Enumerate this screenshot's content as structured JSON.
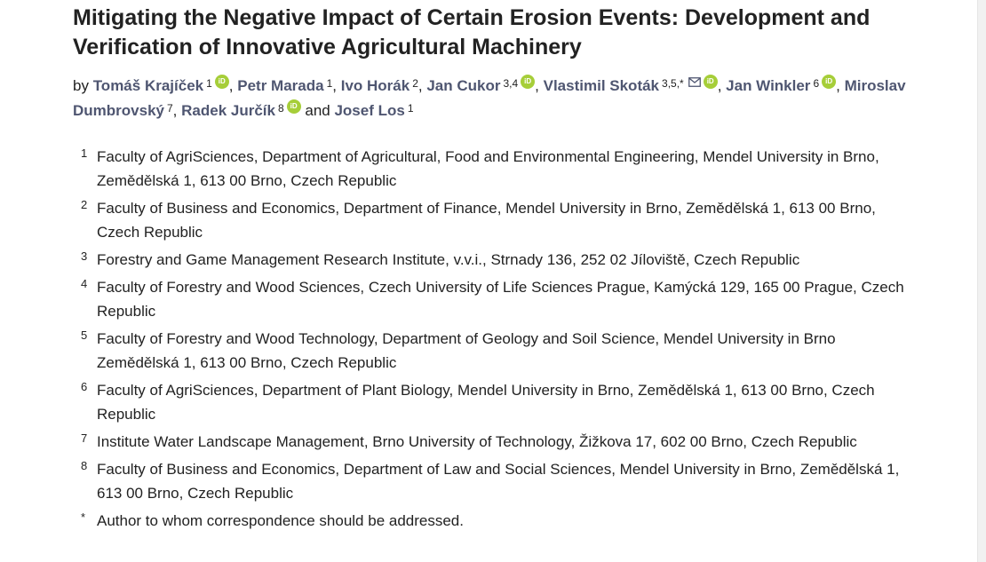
{
  "title": "Mitigating the Negative Impact of Certain Erosion Events: Development and Verification of Innovative Agricultural Machinery",
  "byline_prefix": "by",
  "conjunction": "and",
  "authors": [
    {
      "name": "Tomáš Krajíček",
      "affil": "1",
      "orcid": true
    },
    {
      "name": "Petr Marada",
      "affil": "1",
      "orcid": false
    },
    {
      "name": "Ivo Horák",
      "affil": "2",
      "orcid": false
    },
    {
      "name": "Jan Cukor",
      "affil": "3,4",
      "orcid": true
    },
    {
      "name": "Vlastimil Skoták",
      "affil": "3,5,*",
      "orcid": true,
      "email": true
    },
    {
      "name": "Jan Winkler",
      "affil": "6",
      "orcid": true
    },
    {
      "name": "Miroslav Dumbrovský",
      "affil": "7",
      "orcid": false
    },
    {
      "name": "Radek Jurčík",
      "affil": "8",
      "orcid": true
    },
    {
      "name": "Josef Los",
      "affil": "1",
      "orcid": false
    }
  ],
  "orcid_label": "iD",
  "icons": {
    "orcid": "orcid-icon",
    "email": "envelope-icon"
  },
  "colors": {
    "author_link": "#4f5671",
    "orcid": "#a6ce39",
    "text": "#222222"
  },
  "affiliations": [
    {
      "num": "1",
      "text": "Faculty of AgriSciences, Department of Agricultural, Food and Environmental Engineering, Mendel University in Brno, Zemědělská 1, 613 00 Brno, Czech Republic"
    },
    {
      "num": "2",
      "text": "Faculty of Business and Economics, Department of Finance, Mendel University in Brno, Zemědělská 1, 613 00 Brno, Czech Republic"
    },
    {
      "num": "3",
      "text": "Forestry and Game Management Research Institute, v.v.i., Strnady 136, 252 02 Jíloviště, Czech Republic"
    },
    {
      "num": "4",
      "text": "Faculty of Forestry and Wood Sciences, Czech University of Life Sciences Prague, Kamýcká 129, 165 00 Prague, Czech Republic"
    },
    {
      "num": "5",
      "text": "Faculty of Forestry and Wood Technology, Department of Geology and Soil Science, Mendel University in Brno Zemědělská 1, 613 00 Brno, Czech Republic"
    },
    {
      "num": "6",
      "text": "Faculty of AgriSciences, Department of Plant Biology, Mendel University in Brno, Zemědělská 1, 613 00 Brno, Czech Republic"
    },
    {
      "num": "7",
      "text": "Institute Water Landscape Management, Brno University of Technology, Žižkova 17, 602 00 Brno, Czech Republic"
    },
    {
      "num": "8",
      "text": "Faculty of Business and Economics, Department of Law and Social Sciences, Mendel University in Brno, Zemědělská 1, 613 00 Brno, Czech Republic"
    },
    {
      "num": "*",
      "text": "Author to whom correspondence should be addressed."
    }
  ]
}
